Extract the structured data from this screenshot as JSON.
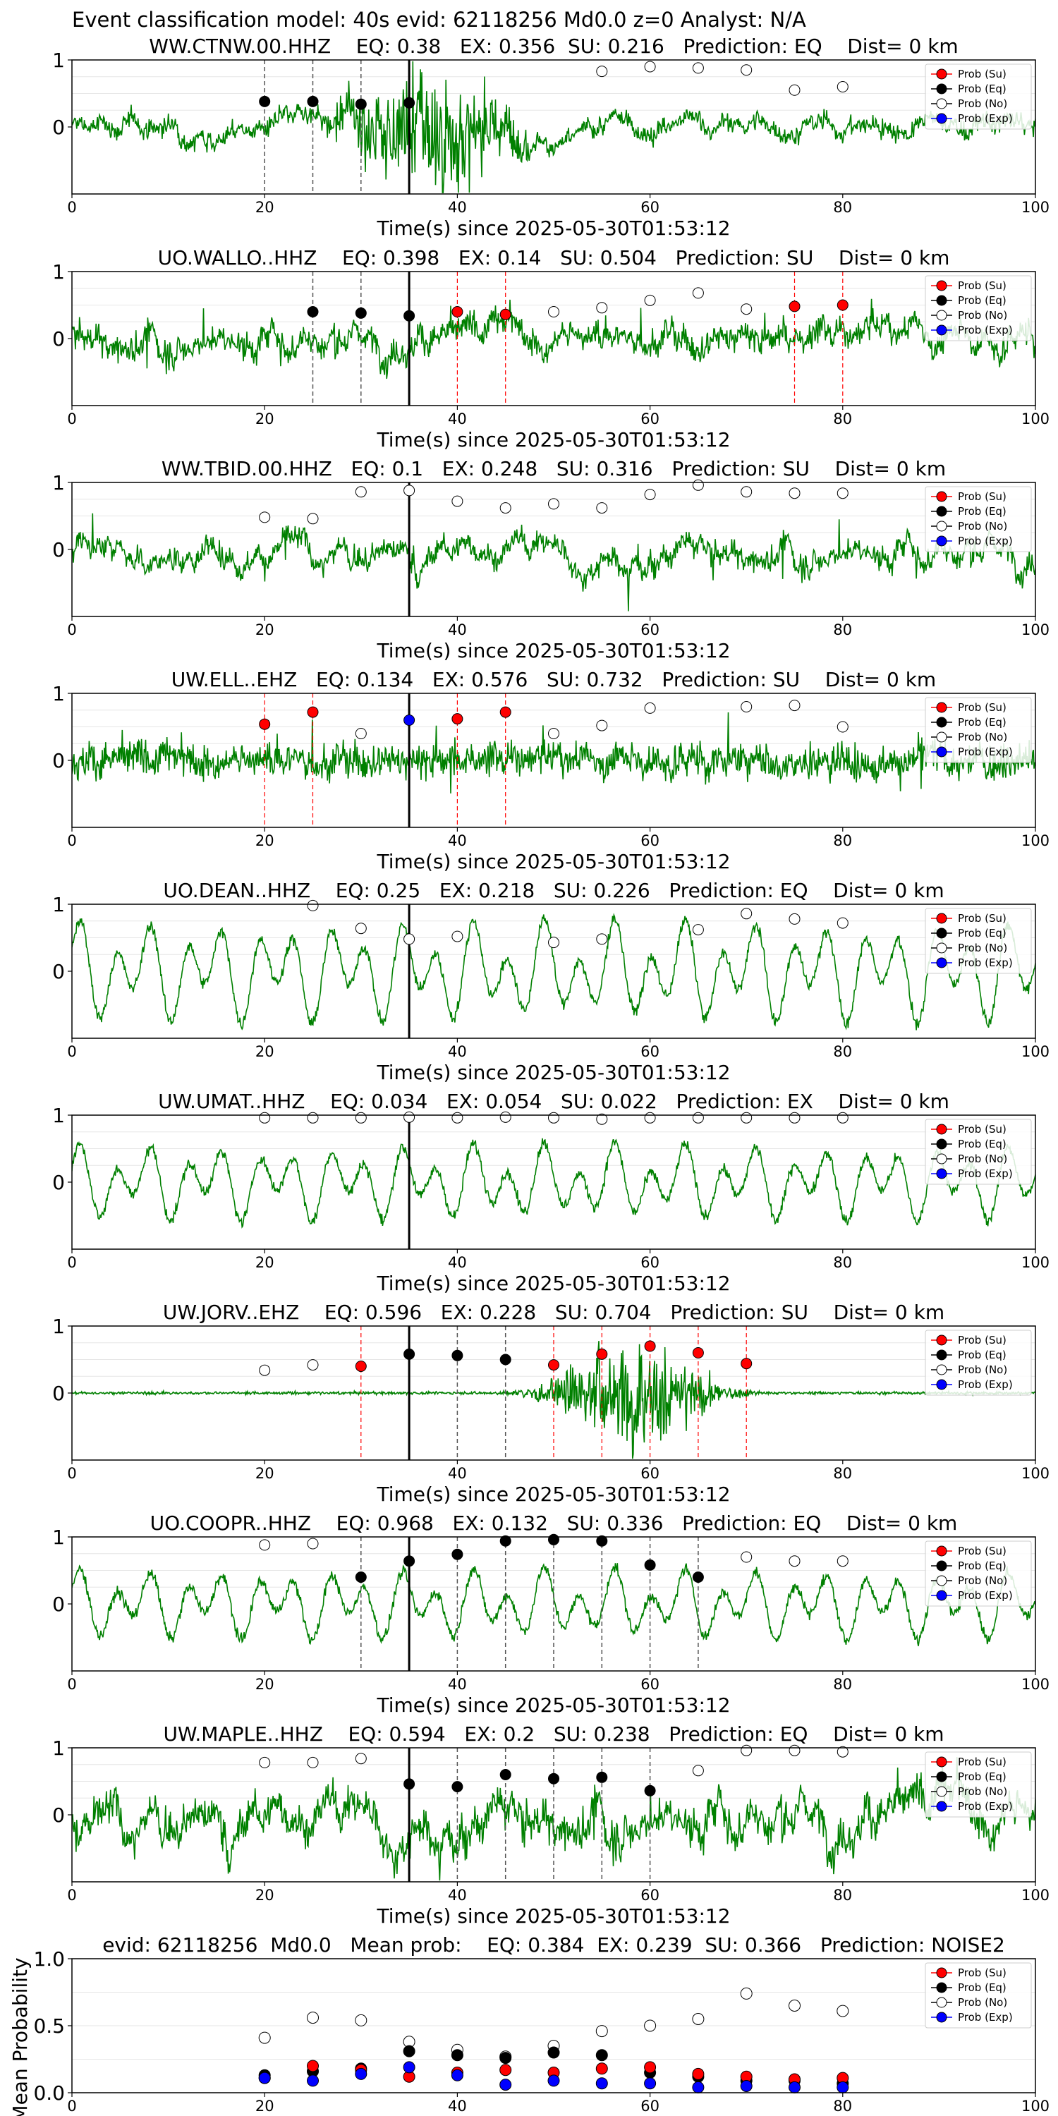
{
  "figure": {
    "suptitle": "Event classification model: 40s evid: 62118256 Md0.0 z=0 Analyst: N/A",
    "colors": {
      "waveform": "#008000",
      "su": "#ff0000",
      "eq": "#000000",
      "no": "#ffffff",
      "exp": "#0000ff",
      "pick_line": "#000000",
      "su_line": "#ff0000",
      "eq_line": "#000000"
    },
    "legend_labels": [
      "Prob (Su)",
      "Prob (Eq)",
      "Prob (No)",
      "Prob (Exp)"
    ],
    "xlabel": "Time(s) since 2025-05-30T01:53:12"
  },
  "chart_data": [
    {
      "type": "line",
      "title": "WW.CTNW.00.HHZ    EQ: 0.38   EX: 0.356  SU: 0.216   Prediction: EQ    Dist= 0 km",
      "xlabel": "Time(s) since 2025-05-30T01:53:12",
      "xlim": [
        0,
        100
      ],
      "ylim": [
        -1,
        1
      ],
      "xticks": [
        "0",
        "20",
        "40",
        "60",
        "80",
        "100"
      ],
      "yticks": [
        "1",
        "0"
      ],
      "legend_position": "top-right",
      "pick_time": 35,
      "waveform_style": "burst",
      "waveform_params": {
        "base": 0.12,
        "lowfreq": 0.04,
        "burst_center": 37,
        "burst_amp": 0.9,
        "burst_width": 8
      },
      "eq_lines": [
        20,
        25,
        30
      ],
      "su_lines": [],
      "points": [
        {
          "x": 20,
          "y": 0.38,
          "cls": "eq"
        },
        {
          "x": 25,
          "y": 0.38,
          "cls": "eq"
        },
        {
          "x": 30,
          "y": 0.34,
          "cls": "eq"
        },
        {
          "x": 35,
          "y": 0.36,
          "cls": "eq"
        },
        {
          "x": 55,
          "y": 0.83,
          "cls": "no"
        },
        {
          "x": 60,
          "y": 0.9,
          "cls": "no"
        },
        {
          "x": 65,
          "y": 0.88,
          "cls": "no"
        },
        {
          "x": 70,
          "y": 0.85,
          "cls": "no"
        },
        {
          "x": 75,
          "y": 0.55,
          "cls": "no"
        },
        {
          "x": 80,
          "y": 0.6,
          "cls": "no"
        }
      ]
    },
    {
      "type": "line",
      "title": "UO.WALLO..HHZ    EQ: 0.398   EX: 0.14   SU: 0.504   Prediction: SU    Dist= 0 km",
      "xlabel": "Time(s) since 2025-05-30T01:53:12",
      "xlim": [
        0,
        100
      ],
      "ylim": [
        -1,
        1
      ],
      "xticks": [
        "0",
        "20",
        "40",
        "60",
        "80",
        "100"
      ],
      "yticks": [
        "1",
        "0"
      ],
      "legend_position": "top-right",
      "pick_time": 35,
      "waveform_style": "noisy",
      "waveform_params": {
        "base": 0.35,
        "lowfreq": 0.05
      },
      "eq_lines": [
        25,
        30
      ],
      "su_lines": [
        40,
        45,
        75,
        80
      ],
      "points": [
        {
          "x": 25,
          "y": 0.4,
          "cls": "eq"
        },
        {
          "x": 30,
          "y": 0.38,
          "cls": "eq"
        },
        {
          "x": 35,
          "y": 0.34,
          "cls": "eq"
        },
        {
          "x": 40,
          "y": 0.4,
          "cls": "su"
        },
        {
          "x": 45,
          "y": 0.36,
          "cls": "su"
        },
        {
          "x": 50,
          "y": 0.4,
          "cls": "no"
        },
        {
          "x": 55,
          "y": 0.46,
          "cls": "no"
        },
        {
          "x": 60,
          "y": 0.57,
          "cls": "no"
        },
        {
          "x": 65,
          "y": 0.68,
          "cls": "no"
        },
        {
          "x": 70,
          "y": 0.44,
          "cls": "no"
        },
        {
          "x": 75,
          "y": 0.48,
          "cls": "su"
        },
        {
          "x": 80,
          "y": 0.5,
          "cls": "su"
        }
      ]
    },
    {
      "type": "line",
      "title": "WW.TBID.00.HHZ   EQ: 0.1   EX: 0.248   SU: 0.316   Prediction: SU    Dist= 0 km",
      "xlabel": "Time(s) since 2025-05-30T01:53:12",
      "xlim": [
        0,
        100
      ],
      "ylim": [
        -1,
        1
      ],
      "xticks": [
        "0",
        "20",
        "40",
        "60",
        "80",
        "100"
      ],
      "yticks": [
        "1",
        "0"
      ],
      "legend_position": "top-right",
      "pick_time": 35,
      "waveform_style": "noisy",
      "waveform_params": {
        "base": 0.28,
        "lowfreq": 0.06
      },
      "eq_lines": [],
      "su_lines": [],
      "points": [
        {
          "x": 20,
          "y": 0.48,
          "cls": "no"
        },
        {
          "x": 25,
          "y": 0.46,
          "cls": "no"
        },
        {
          "x": 30,
          "y": 0.86,
          "cls": "no"
        },
        {
          "x": 35,
          "y": 0.88,
          "cls": "no"
        },
        {
          "x": 40,
          "y": 0.72,
          "cls": "no"
        },
        {
          "x": 45,
          "y": 0.62,
          "cls": "no"
        },
        {
          "x": 50,
          "y": 0.68,
          "cls": "no"
        },
        {
          "x": 55,
          "y": 0.62,
          "cls": "no"
        },
        {
          "x": 60,
          "y": 0.82,
          "cls": "no"
        },
        {
          "x": 65,
          "y": 0.96,
          "cls": "no"
        },
        {
          "x": 70,
          "y": 0.86,
          "cls": "no"
        },
        {
          "x": 75,
          "y": 0.84,
          "cls": "no"
        },
        {
          "x": 80,
          "y": 0.84,
          "cls": "no"
        }
      ]
    },
    {
      "type": "line",
      "title": "UW.ELL..EHZ   EQ: 0.134   EX: 0.576   SU: 0.732   Prediction: SU    Dist= 0 km",
      "xlabel": "Time(s) since 2025-05-30T01:53:12",
      "xlim": [
        0,
        100
      ],
      "ylim": [
        -1,
        1
      ],
      "xticks": [
        "0",
        "20",
        "40",
        "60",
        "80",
        "100"
      ],
      "yticks": [
        "1",
        "0"
      ],
      "legend_position": "top-right",
      "pick_time": 35,
      "waveform_style": "spiky",
      "waveform_params": {
        "base": 0.4,
        "lowfreq": 0.04
      },
      "eq_lines": [],
      "su_lines": [
        20,
        25,
        40,
        45
      ],
      "points": [
        {
          "x": 20,
          "y": 0.54,
          "cls": "su"
        },
        {
          "x": 25,
          "y": 0.72,
          "cls": "su"
        },
        {
          "x": 30,
          "y": 0.4,
          "cls": "no"
        },
        {
          "x": 35,
          "y": 0.6,
          "cls": "exp"
        },
        {
          "x": 40,
          "y": 0.62,
          "cls": "su"
        },
        {
          "x": 45,
          "y": 0.72,
          "cls": "su"
        },
        {
          "x": 50,
          "y": 0.4,
          "cls": "no"
        },
        {
          "x": 55,
          "y": 0.52,
          "cls": "no"
        },
        {
          "x": 60,
          "y": 0.78,
          "cls": "no"
        },
        {
          "x": 70,
          "y": 0.8,
          "cls": "no"
        },
        {
          "x": 75,
          "y": 0.82,
          "cls": "no"
        },
        {
          "x": 80,
          "y": 0.5,
          "cls": "no"
        }
      ]
    },
    {
      "type": "line",
      "title": "UO.DEAN..HHZ    EQ: 0.25   EX: 0.218   SU: 0.226   Prediction: EQ    Dist= 0 km",
      "xlabel": "Time(s) since 2025-05-30T01:53:12",
      "xlim": [
        0,
        100
      ],
      "ylim": [
        -1,
        1
      ],
      "xticks": [
        "0",
        "20",
        "40",
        "60",
        "80",
        "100"
      ],
      "yticks": [
        "1",
        "0"
      ],
      "legend_position": "top-right",
      "pick_time": 35,
      "waveform_style": "oscillating",
      "waveform_params": {
        "base": 0.55,
        "lowfreq": 0.8
      },
      "eq_lines": [],
      "su_lines": [],
      "points": [
        {
          "x": 25,
          "y": 0.98,
          "cls": "no"
        },
        {
          "x": 30,
          "y": 0.64,
          "cls": "no"
        },
        {
          "x": 35,
          "y": 0.48,
          "cls": "no"
        },
        {
          "x": 40,
          "y": 0.52,
          "cls": "no"
        },
        {
          "x": 50,
          "y": 0.43,
          "cls": "no"
        },
        {
          "x": 55,
          "y": 0.48,
          "cls": "no"
        },
        {
          "x": 65,
          "y": 0.62,
          "cls": "no"
        },
        {
          "x": 70,
          "y": 0.86,
          "cls": "no"
        },
        {
          "x": 75,
          "y": 0.78,
          "cls": "no"
        },
        {
          "x": 80,
          "y": 0.72,
          "cls": "no"
        }
      ]
    },
    {
      "type": "line",
      "title": "UW.UMAT..HHZ    EQ: 0.034   EX: 0.054   SU: 0.022   Prediction: EX    Dist= 0 km",
      "xlabel": "Time(s) since 2025-05-30T01:53:12",
      "xlim": [
        0,
        100
      ],
      "ylim": [
        -1,
        1
      ],
      "xticks": [
        "0",
        "20",
        "40",
        "60",
        "80",
        "100"
      ],
      "yticks": [
        "1",
        "0"
      ],
      "legend_position": "top-right",
      "pick_time": 35,
      "waveform_style": "oscillating",
      "waveform_params": {
        "base": 0.65,
        "lowfreq": 0.6
      },
      "eq_lines": [],
      "su_lines": [],
      "points": [
        {
          "x": 20,
          "y": 0.96,
          "cls": "no"
        },
        {
          "x": 25,
          "y": 0.96,
          "cls": "no"
        },
        {
          "x": 30,
          "y": 0.96,
          "cls": "no"
        },
        {
          "x": 35,
          "y": 0.97,
          "cls": "no"
        },
        {
          "x": 40,
          "y": 0.96,
          "cls": "no"
        },
        {
          "x": 45,
          "y": 0.97,
          "cls": "no"
        },
        {
          "x": 50,
          "y": 0.96,
          "cls": "no"
        },
        {
          "x": 55,
          "y": 0.94,
          "cls": "no"
        },
        {
          "x": 60,
          "y": 0.96,
          "cls": "no"
        },
        {
          "x": 65,
          "y": 0.96,
          "cls": "no"
        },
        {
          "x": 70,
          "y": 0.96,
          "cls": "no"
        },
        {
          "x": 75,
          "y": 0.96,
          "cls": "no"
        },
        {
          "x": 80,
          "y": 0.96,
          "cls": "no"
        }
      ]
    },
    {
      "type": "line",
      "title": "UW.JORV..EHZ    EQ: 0.596   EX: 0.228   SU: 0.704   Prediction: SU    Dist= 0 km",
      "xlabel": "Time(s) since 2025-05-30T01:53:12",
      "xlim": [
        0,
        100
      ],
      "ylim": [
        -1,
        1
      ],
      "xticks": [
        "0",
        "20",
        "40",
        "60",
        "80",
        "100"
      ],
      "yticks": [
        "1",
        "0"
      ],
      "legend_position": "top-right",
      "pick_time": 35,
      "waveform_style": "burst",
      "waveform_params": {
        "base": 0.02,
        "lowfreq": 0.0,
        "burst_center": 58,
        "burst_amp": 0.85,
        "burst_width": 7
      },
      "eq_lines": [
        40,
        45
      ],
      "su_lines": [
        30,
        50,
        55,
        60,
        65,
        70
      ],
      "points": [
        {
          "x": 20,
          "y": 0.34,
          "cls": "no"
        },
        {
          "x": 25,
          "y": 0.42,
          "cls": "no"
        },
        {
          "x": 30,
          "y": 0.4,
          "cls": "su"
        },
        {
          "x": 35,
          "y": 0.58,
          "cls": "eq"
        },
        {
          "x": 40,
          "y": 0.56,
          "cls": "eq"
        },
        {
          "x": 45,
          "y": 0.5,
          "cls": "eq"
        },
        {
          "x": 50,
          "y": 0.42,
          "cls": "su"
        },
        {
          "x": 55,
          "y": 0.58,
          "cls": "su"
        },
        {
          "x": 60,
          "y": 0.7,
          "cls": "su"
        },
        {
          "x": 65,
          "y": 0.6,
          "cls": "su"
        },
        {
          "x": 70,
          "y": 0.44,
          "cls": "su"
        }
      ]
    },
    {
      "type": "line",
      "title": "UO.COOPR..HHZ    EQ: 0.968   EX: 0.132   SU: 0.336   Prediction: EQ    Dist= 0 km",
      "xlabel": "Time(s) since 2025-05-30T01:53:12",
      "xlim": [
        0,
        100
      ],
      "ylim": [
        -1,
        1
      ],
      "xticks": [
        "0",
        "20",
        "40",
        "60",
        "80",
        "100"
      ],
      "yticks": [
        "1",
        "0"
      ],
      "legend_position": "top-right",
      "pick_time": 35,
      "waveform_style": "oscillating",
      "waveform_params": {
        "base": 0.5,
        "lowfreq": 0.55
      },
      "eq_lines": [
        30,
        40,
        45,
        50,
        55,
        60,
        65
      ],
      "su_lines": [],
      "points": [
        {
          "x": 20,
          "y": 0.88,
          "cls": "no"
        },
        {
          "x": 25,
          "y": 0.9,
          "cls": "no"
        },
        {
          "x": 30,
          "y": 0.4,
          "cls": "eq"
        },
        {
          "x": 35,
          "y": 0.64,
          "cls": "eq"
        },
        {
          "x": 40,
          "y": 0.74,
          "cls": "eq"
        },
        {
          "x": 45,
          "y": 0.94,
          "cls": "eq"
        },
        {
          "x": 50,
          "y": 0.96,
          "cls": "eq"
        },
        {
          "x": 55,
          "y": 0.94,
          "cls": "eq"
        },
        {
          "x": 60,
          "y": 0.58,
          "cls": "eq"
        },
        {
          "x": 65,
          "y": 0.4,
          "cls": "eq"
        },
        {
          "x": 70,
          "y": 0.7,
          "cls": "no"
        },
        {
          "x": 75,
          "y": 0.64,
          "cls": "no"
        },
        {
          "x": 80,
          "y": 0.64,
          "cls": "no"
        }
      ]
    },
    {
      "type": "line",
      "title": "UW.MAPLE..HHZ    EQ: 0.594   EX: 0.2   SU: 0.238   Prediction: EQ    Dist= 0 km",
      "xlabel": "Time(s) since 2025-05-30T01:53:12",
      "xlim": [
        0,
        100
      ],
      "ylim": [
        -1,
        1
      ],
      "xticks": [
        "0",
        "20",
        "40",
        "60",
        "80",
        "100"
      ],
      "yticks": [
        "1",
        "0"
      ],
      "legend_position": "top-right",
      "pick_time": 35,
      "waveform_style": "noisy",
      "waveform_params": {
        "base": 0.45,
        "lowfreq": 0.15
      },
      "eq_lines": [
        40,
        45,
        50,
        55,
        60
      ],
      "su_lines": [],
      "points": [
        {
          "x": 20,
          "y": 0.78,
          "cls": "no"
        },
        {
          "x": 25,
          "y": 0.78,
          "cls": "no"
        },
        {
          "x": 30,
          "y": 0.84,
          "cls": "no"
        },
        {
          "x": 35,
          "y": 0.46,
          "cls": "eq"
        },
        {
          "x": 40,
          "y": 0.42,
          "cls": "eq"
        },
        {
          "x": 45,
          "y": 0.6,
          "cls": "eq"
        },
        {
          "x": 50,
          "y": 0.54,
          "cls": "eq"
        },
        {
          "x": 55,
          "y": 0.56,
          "cls": "eq"
        },
        {
          "x": 60,
          "y": 0.36,
          "cls": "eq"
        },
        {
          "x": 65,
          "y": 0.66,
          "cls": "no"
        },
        {
          "x": 70,
          "y": 0.96,
          "cls": "no"
        },
        {
          "x": 75,
          "y": 0.96,
          "cls": "no"
        },
        {
          "x": 80,
          "y": 0.94,
          "cls": "no"
        }
      ]
    },
    {
      "type": "scatter",
      "title": "evid: 62118256  Md0.0   Mean prob:    EQ: 0.384  EX: 0.239  SU: 0.366   Prediction: NOISE2",
      "xlabel": "",
      "ylabel": "Mean Probability",
      "xlim": [
        0,
        100
      ],
      "ylim": [
        0,
        1
      ],
      "xticks": [
        "0",
        "20",
        "40",
        "60",
        "80",
        "100"
      ],
      "yticks": [
        "1.0",
        "0.5",
        "0.0"
      ],
      "legend_position": "top-right",
      "series": [
        {
          "name": "Prob (No)",
          "cls": "no",
          "x": [
            20,
            25,
            30,
            35,
            40,
            45,
            50,
            55,
            60,
            65,
            70,
            75,
            80
          ],
          "values": [
            0.41,
            0.56,
            0.54,
            0.38,
            0.32,
            0.27,
            0.35,
            0.46,
            0.5,
            0.55,
            0.74,
            0.65,
            0.61
          ]
        },
        {
          "name": "Prob (Eq)",
          "cls": "eq",
          "x": [
            20,
            25,
            30,
            35,
            40,
            45,
            50,
            55,
            60,
            65,
            70,
            75,
            80
          ],
          "values": [
            0.13,
            0.16,
            0.18,
            0.31,
            0.28,
            0.26,
            0.3,
            0.28,
            0.15,
            0.12,
            0.09,
            0.09,
            0.07
          ]
        },
        {
          "name": "Prob (Su)",
          "cls": "su",
          "x": [
            20,
            25,
            30,
            35,
            40,
            45,
            50,
            55,
            60,
            65,
            70,
            75,
            80
          ],
          "values": [
            0.11,
            0.2,
            0.17,
            0.12,
            0.15,
            0.17,
            0.15,
            0.18,
            0.19,
            0.14,
            0.12,
            0.1,
            0.11
          ]
        },
        {
          "name": "Prob (Exp)",
          "cls": "exp",
          "x": [
            20,
            25,
            30,
            35,
            40,
            45,
            50,
            55,
            60,
            65,
            70,
            75,
            80
          ],
          "values": [
            0.11,
            0.09,
            0.14,
            0.19,
            0.13,
            0.06,
            0.09,
            0.07,
            0.07,
            0.04,
            0.05,
            0.04,
            0.04
          ]
        }
      ]
    }
  ]
}
